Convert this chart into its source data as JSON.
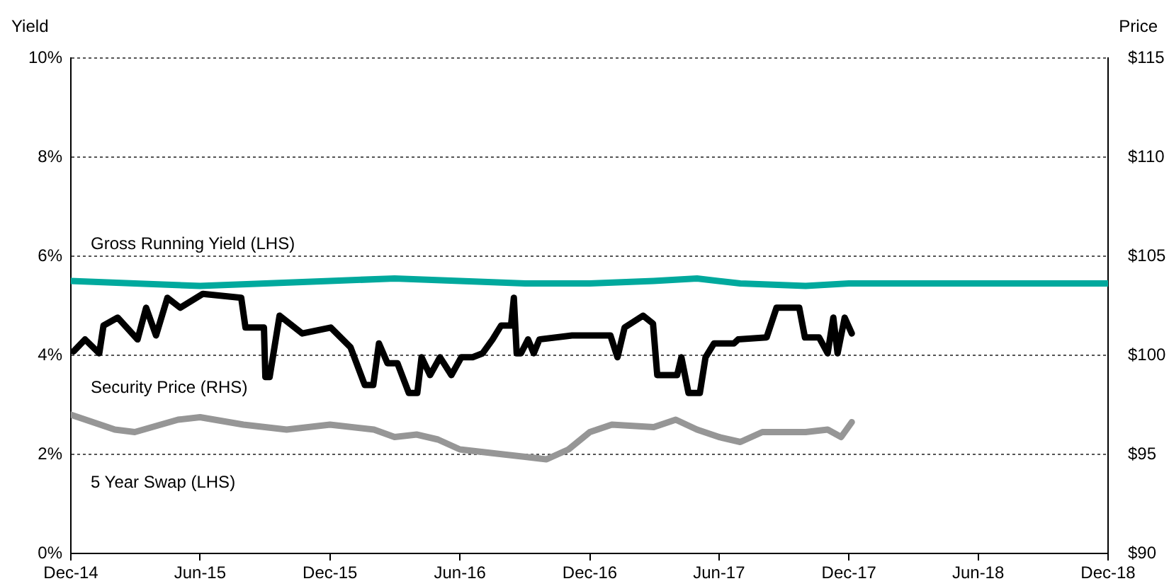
{
  "chart_data": {
    "type": "line",
    "ylabel": "Yield",
    "y2label": "Price",
    "xlim": [
      "2014-12-01",
      "2018-12-01"
    ],
    "xticks": [
      {
        "value": "2014-12-01",
        "label": "Dec-14"
      },
      {
        "value": "2015-06-01",
        "label": "Jun-15"
      },
      {
        "value": "2015-12-01",
        "label": "Dec-15"
      },
      {
        "value": "2016-06-01",
        "label": "Jun-16"
      },
      {
        "value": "2016-12-01",
        "label": "Dec-16"
      },
      {
        "value": "2017-06-01",
        "label": "Jun-17"
      },
      {
        "value": "2017-12-01",
        "label": "Dec-17"
      },
      {
        "value": "2018-06-01",
        "label": "Jun-18"
      },
      {
        "value": "2018-12-01",
        "label": "Dec-18"
      }
    ],
    "ylim": [
      0,
      10
    ],
    "yticks": [
      {
        "value": 0,
        "label": "0%"
      },
      {
        "value": 2,
        "label": "2%"
      },
      {
        "value": 4,
        "label": "4%"
      },
      {
        "value": 6,
        "label": "6%"
      },
      {
        "value": 8,
        "label": "8%"
      },
      {
        "value": 10,
        "label": "10%"
      }
    ],
    "y2lim": [
      90,
      115
    ],
    "y2ticks": [
      {
        "value": 90,
        "label": "$90"
      },
      {
        "value": 95,
        "label": "$95"
      },
      {
        "value": 100,
        "label": "$100"
      },
      {
        "value": 105,
        "label": "$105"
      },
      {
        "value": 110,
        "label": "$110"
      },
      {
        "value": 115,
        "label": "$115"
      }
    ],
    "grid": "y",
    "legend": false,
    "marker": "none",
    "line_style": "solid",
    "series": [
      {
        "name": "Gross Running Yield (LHS)",
        "color": "#00a99d",
        "x": [
          "2014-12",
          "2015-03",
          "2015-06",
          "2015-09",
          "2015-12",
          "2016-03",
          "2016-06",
          "2016-09",
          "2016-12",
          "2017-03",
          "2017-05",
          "2017-07",
          "2017-10",
          "2017-12",
          "2018-12"
        ],
        "values": [
          5.5,
          5.45,
          5.4,
          5.45,
          5.5,
          5.55,
          5.5,
          5.45,
          5.45,
          5.5,
          5.55,
          5.45,
          5.4,
          5.45,
          5.45
        ]
      },
      {
        "name": "Security Price (RHS)",
        "color": "#000000",
        "axis": "y2",
        "x": [
          "2014-12-05",
          "2014-12-21",
          "2015-01-10",
          "2015-01-16",
          "2015-02-05",
          "2015-03-05",
          "2015-03-17",
          "2015-03-31",
          "2015-04-16",
          "2015-05-04",
          "2015-06-05",
          "2015-07-29",
          "2015-08-04",
          "2015-08-30",
          "2015-09-01",
          "2015-09-07",
          "2015-09-21",
          "2015-10-23",
          "2015-12-02",
          "2015-12-30",
          "2016-01-19",
          "2016-01-31",
          "2016-02-08",
          "2016-02-20",
          "2016-03-05",
          "2016-03-21",
          "2016-04-02",
          "2016-04-08",
          "2016-04-20",
          "2016-05-04",
          "2016-05-20",
          "2016-06-03",
          "2016-06-19",
          "2016-07-03",
          "2016-07-17",
          "2016-07-29",
          "2016-08-12",
          "2016-08-16",
          "2016-08-20",
          "2016-08-26",
          "2016-09-05",
          "2016-09-13",
          "2016-09-21",
          "2016-11-06",
          "2016-12-30",
          "2017-01-09",
          "2017-01-19",
          "2017-02-14",
          "2017-02-28",
          "2017-03-06",
          "2017-04-03",
          "2017-04-09",
          "2017-04-19",
          "2017-05-05",
          "2017-05-13",
          "2017-05-25",
          "2017-06-22",
          "2017-06-28",
          "2017-08-07",
          "2017-08-21",
          "2017-09-22",
          "2017-09-30",
          "2017-10-20",
          "2017-11-01",
          "2017-11-09",
          "2017-11-15",
          "2017-11-25",
          "2017-12-05"
        ],
        "values": [
          100.2,
          100.8,
          100.1,
          101.5,
          101.9,
          100.8,
          102.4,
          101.0,
          102.9,
          102.4,
          103.1,
          102.9,
          101.4,
          101.4,
          98.9,
          98.9,
          102.0,
          101.1,
          101.4,
          100.4,
          98.5,
          98.5,
          100.6,
          99.6,
          99.6,
          98.1,
          98.1,
          99.9,
          99.0,
          99.9,
          99.0,
          99.9,
          99.9,
          100.1,
          100.8,
          101.5,
          101.5,
          102.9,
          100.1,
          100.1,
          100.8,
          100.1,
          100.8,
          101.0,
          101.0,
          99.9,
          101.4,
          102.0,
          101.6,
          99.0,
          99.0,
          99.9,
          98.1,
          98.1,
          99.9,
          100.6,
          100.6,
          100.8,
          100.9,
          102.4,
          102.4,
          100.9,
          100.9,
          100.1,
          101.9,
          100.1,
          101.9,
          101.1
        ]
      },
      {
        "name": "5 Year Swap (LHS)",
        "color": "#969696",
        "x": [
          "2014-12",
          "2015-02",
          "2015-03",
          "2015-05",
          "2015-06",
          "2015-08",
          "2015-10",
          "2015-12",
          "2016-02",
          "2016-03",
          "2016-04",
          "2016-05",
          "2016-06",
          "2016-08",
          "2016-09",
          "2016-10",
          "2016-11",
          "2016-12",
          "2017-01",
          "2017-03",
          "2017-04",
          "2017-05",
          "2017-06",
          "2017-07",
          "2017-08",
          "2017-10",
          "2017-11",
          "2017-11-20",
          "2017-12-05"
        ],
        "values": [
          2.8,
          2.5,
          2.45,
          2.7,
          2.75,
          2.6,
          2.5,
          2.6,
          2.5,
          2.35,
          2.4,
          2.3,
          2.1,
          2.0,
          1.95,
          1.9,
          2.1,
          2.45,
          2.6,
          2.55,
          2.7,
          2.5,
          2.35,
          2.25,
          2.45,
          2.45,
          2.5,
          2.35,
          2.65
        ]
      }
    ]
  }
}
